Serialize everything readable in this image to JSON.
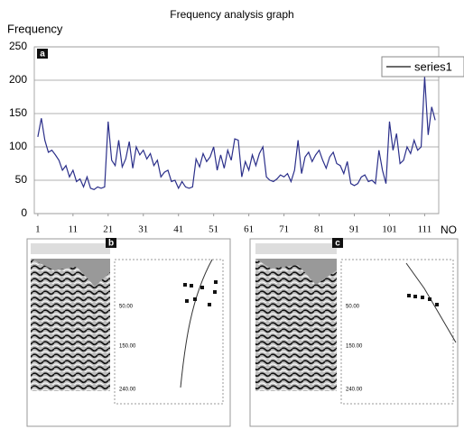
{
  "chart_data": {
    "type": "line",
    "title": "Frequency analysis graph",
    "y_label": "Frequency",
    "x_label": "NO",
    "panel_label": "a",
    "x": [
      1,
      2,
      3,
      4,
      5,
      6,
      7,
      8,
      9,
      10,
      11,
      12,
      13,
      14,
      15,
      16,
      17,
      18,
      19,
      20,
      21,
      22,
      23,
      24,
      25,
      26,
      27,
      28,
      29,
      30,
      31,
      32,
      33,
      34,
      35,
      36,
      37,
      38,
      39,
      40,
      41,
      42,
      43,
      44,
      45,
      46,
      47,
      48,
      49,
      50,
      51,
      52,
      53,
      54,
      55,
      56,
      57,
      58,
      59,
      60,
      61,
      62,
      63,
      64,
      65,
      66,
      67,
      68,
      69,
      70,
      71,
      72,
      73,
      74,
      75,
      76,
      77,
      78,
      79,
      80,
      81,
      82,
      83,
      84,
      85,
      86,
      87,
      88,
      89,
      90,
      91,
      92,
      93,
      94,
      95,
      96,
      97,
      98,
      99,
      100,
      101,
      102,
      103,
      104,
      105,
      106,
      107,
      108,
      109,
      110,
      111,
      112,
      113,
      114
    ],
    "series": [
      {
        "name": "series1",
        "color": "#2b2f8a",
        "values": [
          115,
          143,
          110,
          92,
          95,
          88,
          80,
          65,
          72,
          55,
          65,
          48,
          52,
          40,
          55,
          38,
          36,
          40,
          38,
          40,
          138,
          80,
          72,
          110,
          70,
          82,
          108,
          68,
          100,
          88,
          95,
          82,
          90,
          72,
          80,
          55,
          62,
          65,
          48,
          50,
          38,
          48,
          40,
          38,
          40,
          82,
          70,
          90,
          78,
          85,
          100,
          65,
          88,
          68,
          95,
          80,
          112,
          110,
          55,
          78,
          65,
          88,
          72,
          90,
          100,
          55,
          50,
          48,
          52,
          58,
          55,
          60,
          48,
          65,
          110,
          60,
          85,
          92,
          78,
          88,
          95,
          80,
          68,
          85,
          92,
          75,
          72,
          60,
          78,
          45,
          42,
          45,
          55,
          58,
          48,
          50,
          45,
          95,
          65,
          45,
          138,
          95,
          120,
          75,
          80,
          100,
          90,
          110,
          95,
          100,
          205,
          118,
          160,
          140
        ]
      }
    ],
    "xlim": [
      0,
      115
    ],
    "xticks": [
      1,
      11,
      21,
      31,
      41,
      51,
      61,
      71,
      81,
      91,
      101,
      111
    ],
    "ylim": [
      0,
      250
    ],
    "yticks": [
      0,
      50,
      100,
      150,
      200,
      250
    ],
    "grid": true,
    "legend": "top-right"
  },
  "panels": [
    {
      "label": "b",
      "depth_labels": [
        "50.00",
        "150.00",
        "240.00"
      ]
    },
    {
      "label": "c",
      "depth_labels": [
        "50.00",
        "150.00",
        "240.00"
      ]
    }
  ]
}
